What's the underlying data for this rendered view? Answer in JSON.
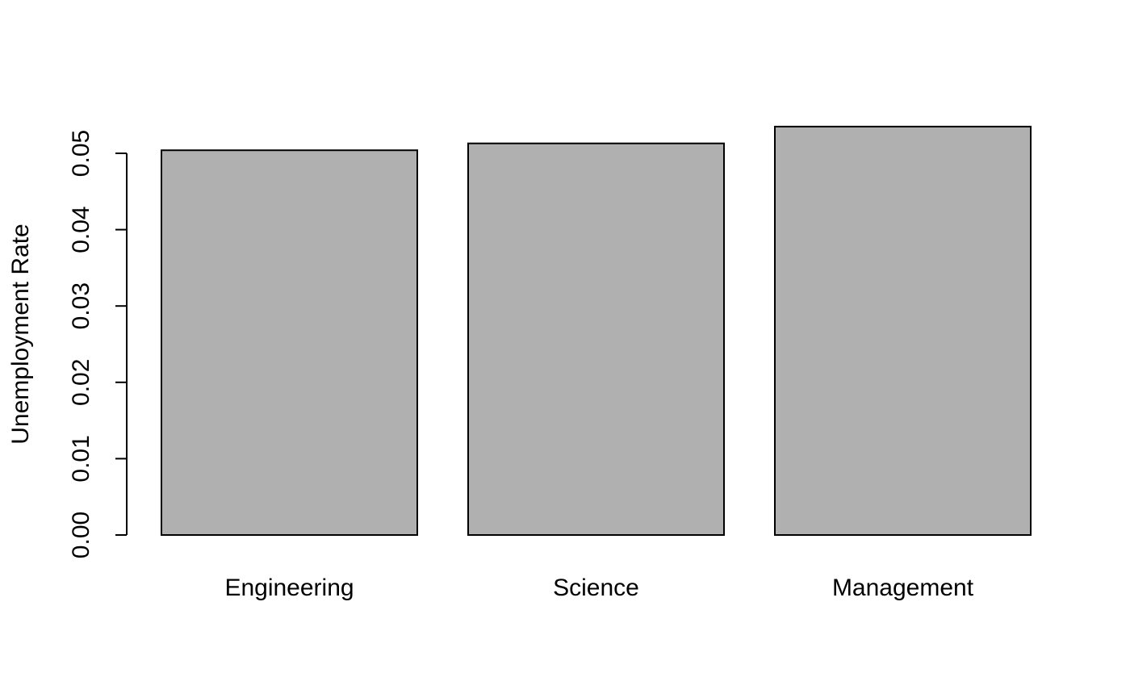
{
  "chart_data": {
    "type": "bar",
    "title": "",
    "xlabel": "",
    "ylabel": "Unemployment Rate",
    "categories": [
      "Engineering",
      "Science",
      "Management"
    ],
    "values": [
      0.0504,
      0.0513,
      0.0535
    ],
    "ylim": [
      0,
      0.05
    ],
    "yticks": [
      0.0,
      0.01,
      0.02,
      0.03,
      0.04,
      0.05
    ],
    "ytick_labels": [
      "0.00",
      "0.01",
      "0.02",
      "0.03",
      "0.04",
      "0.05"
    ],
    "grid": false,
    "legend": "none",
    "colors": {
      "bar_fill": "#b0b0b0",
      "bar_stroke": "#000000",
      "axis": "#000000",
      "background": "#ffffff"
    }
  }
}
